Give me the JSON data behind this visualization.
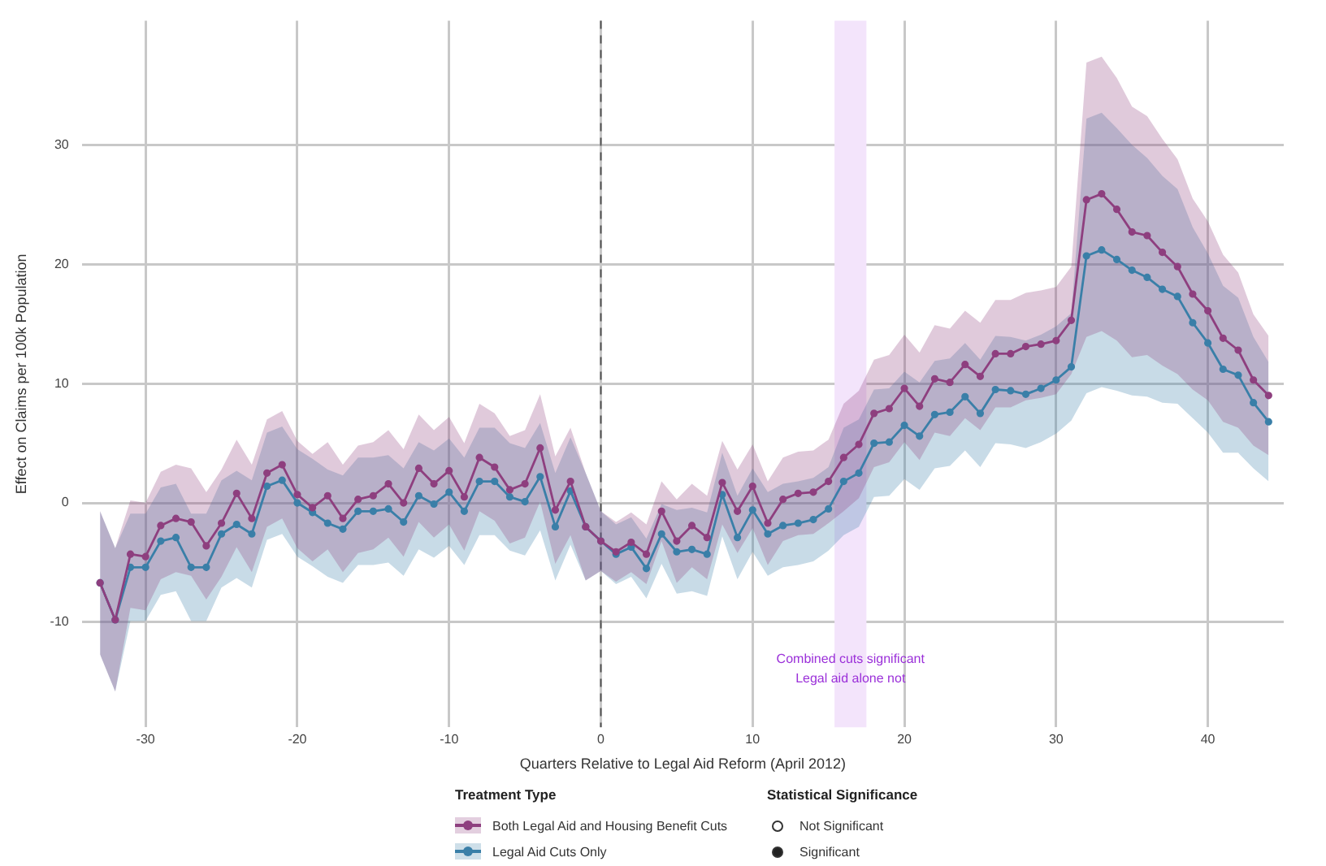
{
  "chart_data": {
    "type": "line",
    "xlabel": "Quarters Relative to Legal Aid Reform (April 2012)",
    "ylabel": "Effect on Claims per 100k Population",
    "legend_title": "Treatment Type",
    "x": [
      -33,
      -32,
      -31,
      -30,
      -29,
      -28,
      -27,
      -26,
      -25,
      -24,
      -23,
      -22,
      -21,
      -20,
      -19,
      -18,
      -17,
      -16,
      -15,
      -14,
      -13,
      -12,
      -11,
      -10,
      -9,
      -8,
      -7,
      -6,
      -5,
      -4,
      -3,
      -2,
      -1,
      0,
      1,
      2,
      3,
      4,
      5,
      6,
      7,
      8,
      9,
      10,
      11,
      12,
      13,
      14,
      15,
      16,
      17,
      18,
      19,
      20,
      21,
      22,
      23,
      24,
      25,
      26,
      27,
      28,
      29,
      30,
      31,
      32,
      33,
      34,
      35,
      36,
      37,
      38,
      39,
      40,
      41,
      42,
      43,
      44
    ],
    "series": [
      {
        "name": "Both Legal Aid and Housing Benefit Cuts",
        "color": "#8e3f7f",
        "values": [
          -6.7,
          -9.8,
          -4.3,
          -4.5,
          -1.9,
          -1.3,
          -1.6,
          -3.6,
          -1.7,
          0.8,
          -1.3,
          2.5,
          3.2,
          0.7,
          -0.4,
          0.6,
          -1.3,
          0.3,
          0.6,
          1.6,
          0,
          2.9,
          1.6,
          2.7,
          0.5,
          3.8,
          3.0,
          1.1,
          1.6,
          4.6,
          -0.6,
          1.8,
          -2.0,
          -3.2,
          -4.1,
          -3.3,
          -4.3,
          -0.7,
          -3.2,
          -1.9,
          -2.9,
          1.7,
          -0.7,
          1.4,
          -1.7,
          0.3,
          0.8,
          0.9,
          1.8,
          3.8,
          4.9,
          7.5,
          7.9,
          9.6,
          8.1,
          10.4,
          10.1,
          11.6,
          10.6,
          12.5,
          12.5,
          13.1,
          13.3,
          13.6,
          15.3,
          25.4,
          25.9,
          24.6,
          22.7,
          22.4,
          21.0,
          19.8,
          17.5,
          16.1,
          13.8,
          12.8,
          10.3,
          9.0
        ],
        "lower": [
          -12.7,
          -15.8,
          -8.8,
          -9,
          -6.4,
          -5.8,
          -6.1,
          -8.1,
          -6.2,
          -3.7,
          -5.8,
          -2,
          -1.3,
          -3.8,
          -4.9,
          -3.9,
          -5.8,
          -4.2,
          -3.9,
          -2.9,
          -4.5,
          -1.6,
          -2.9,
          -1.8,
          -4,
          -0.7,
          -1.5,
          -3.4,
          -2.9,
          0.1,
          -5.1,
          -2.7,
          -6.5,
          -5.7,
          -6.6,
          -5.8,
          -6.8,
          -3.2,
          -6.7,
          -5.4,
          -6.4,
          -1.8,
          -4.2,
          -2.1,
          -5.2,
          -3.2,
          -2.7,
          -2.6,
          -1.7,
          -0.7,
          0.4,
          3,
          3.4,
          5.1,
          3.6,
          5.9,
          5.6,
          7.1,
          6.1,
          8,
          8,
          8.6,
          8.8,
          9.1,
          10.8,
          13.9,
          14.4,
          13.6,
          12.2,
          12.4,
          11.5,
          10.8,
          9.5,
          8.6,
          6.8,
          6.3,
          4.8,
          4
        ],
        "upper": [
          -0.7,
          -3.8,
          0.2,
          0,
          2.6,
          3.2,
          2.9,
          0.9,
          2.8,
          5.3,
          3.2,
          7,
          7.7,
          5.2,
          4.1,
          5.1,
          3.2,
          4.8,
          5.1,
          6.1,
          4.5,
          7.4,
          6.1,
          7.2,
          5,
          8.3,
          7.5,
          5.6,
          6.1,
          9.1,
          3.9,
          6.3,
          2.5,
          -0.7,
          -1.6,
          -0.8,
          -1.8,
          1.8,
          0.3,
          1.6,
          0.6,
          5.2,
          2.8,
          4.9,
          1.8,
          3.8,
          4.3,
          4.4,
          5.3,
          8.3,
          9.4,
          12,
          12.4,
          14.1,
          12.6,
          14.9,
          14.6,
          16.1,
          15.1,
          17,
          17,
          17.6,
          17.8,
          18.1,
          19.8,
          36.9,
          37.4,
          35.6,
          33.2,
          32.4,
          30.5,
          28.8,
          25.5,
          23.6,
          20.8,
          19.3,
          15.8,
          14
        ]
      },
      {
        "name": "Legal Aid Cuts Only",
        "color": "#3a7fa8",
        "values": [
          -6.7,
          -9.8,
          -5.4,
          -5.4,
          -3.2,
          -2.9,
          -5.4,
          -5.4,
          -2.6,
          -1.8,
          -2.6,
          1.4,
          1.9,
          0,
          -0.8,
          -1.7,
          -2.2,
          -0.7,
          -0.7,
          -0.5,
          -1.6,
          0.6,
          -0.1,
          0.9,
          -0.7,
          1.8,
          1.8,
          0.5,
          0.1,
          2.2,
          -2.0,
          1.0,
          -2.0,
          -3.2,
          -4.3,
          -3.7,
          -5.5,
          -2.6,
          -4.1,
          -3.9,
          -4.3,
          0.7,
          -2.9,
          -0.6,
          -2.6,
          -1.9,
          -1.7,
          -1.4,
          -0.5,
          1.8,
          2.5,
          5.0,
          5.1,
          6.5,
          5.6,
          7.4,
          7.6,
          8.9,
          7.5,
          9.5,
          9.4,
          9.1,
          9.6,
          10.3,
          11.4,
          20.7,
          21.2,
          20.4,
          19.5,
          18.9,
          17.9,
          17.3,
          15.1,
          13.4,
          11.2,
          10.7,
          8.4,
          6.8
        ],
        "lower": [
          -12.7,
          -15.8,
          -9.9,
          -9.9,
          -7.7,
          -7.4,
          -9.9,
          -9.9,
          -7.1,
          -6.3,
          -7.1,
          -3.1,
          -2.6,
          -4.5,
          -5.3,
          -6.2,
          -6.7,
          -5.2,
          -5.2,
          -5,
          -6.1,
          -3.9,
          -4.6,
          -3.6,
          -5.2,
          -2.7,
          -2.7,
          -4,
          -4.4,
          -2.3,
          -6.5,
          -3.5,
          -6.5,
          -5.7,
          -6.8,
          -6.2,
          -8,
          -5.1,
          -7.6,
          -7.4,
          -7.8,
          -2.8,
          -6.4,
          -4.1,
          -6.1,
          -5.4,
          -5.2,
          -4.9,
          -4,
          -2.7,
          -2,
          0.5,
          0.6,
          2,
          1.1,
          2.9,
          3.1,
          4.4,
          3,
          5,
          4.9,
          4.6,
          5.1,
          5.8,
          6.9,
          9.2,
          9.7,
          9.4,
          9,
          8.9,
          8.4,
          8.3,
          7.1,
          5.9,
          4.2,
          4.2,
          2.9,
          1.8
        ],
        "upper": [
          -0.7,
          -3.8,
          -0.9,
          -0.9,
          1.3,
          1.6,
          -0.9,
          -0.9,
          1.9,
          2.7,
          1.9,
          5.9,
          6.4,
          4.5,
          3.7,
          2.8,
          2.3,
          3.8,
          3.8,
          4,
          2.9,
          5.1,
          4.4,
          5.4,
          3.8,
          6.3,
          6.3,
          5,
          4.6,
          6.7,
          2.5,
          5.5,
          2.5,
          -0.7,
          -1.8,
          -1.2,
          -3,
          -0.1,
          -0.6,
          -0.4,
          -0.8,
          4.2,
          0.6,
          2.9,
          0.9,
          1.6,
          1.8,
          2.1,
          3,
          6.3,
          7,
          9.5,
          9.6,
          11,
          10.1,
          11.9,
          12.1,
          13.4,
          12,
          14,
          13.9,
          13.6,
          14.1,
          14.8,
          15.9,
          32.2,
          32.7,
          31.4,
          30,
          28.9,
          27.4,
          26.3,
          23.1,
          20.9,
          18.2,
          17.2,
          13.9,
          11.8
        ]
      }
    ],
    "xlim": [
      -34.2,
      45
    ],
    "ylim": [
      -18.8,
      40.4
    ],
    "xticks": [
      -30,
      -20,
      -10,
      0,
      10,
      20,
      30,
      40
    ],
    "yticks": [
      -10,
      0,
      10,
      20,
      30
    ],
    "grid": true,
    "legend": "bottom",
    "marker": "circle",
    "ref_lines": [
      {
        "axis": "x",
        "value": 0,
        "line_style": "dashed",
        "color": "#555555"
      }
    ],
    "bands": [
      {
        "axis": "x",
        "from": 15.4,
        "to": 17.5,
        "color": "#f3e4fb",
        "label": "Combined cuts significant\nLegal aid alone not"
      }
    ],
    "annotations": [
      "Statistical Significance",
      "Not Significant",
      "Significant"
    ]
  }
}
